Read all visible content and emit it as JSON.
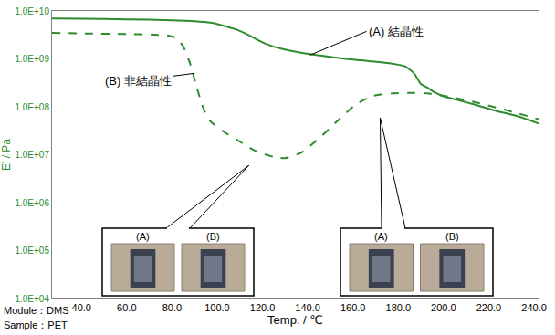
{
  "chart_data": {
    "type": "line",
    "xlabel": "Temp. / ℃",
    "ylabel": "E' / Pa",
    "xlim": [
      27,
      242
    ],
    "xticks": [
      {
        "value": 40,
        "label": "40.0"
      },
      {
        "value": 60,
        "label": "60.0"
      },
      {
        "value": 80,
        "label": "80.0"
      },
      {
        "value": 100,
        "label": "100.0"
      },
      {
        "value": 120,
        "label": "120.0"
      },
      {
        "value": 140,
        "label": "140.0"
      },
      {
        "value": 160,
        "label": "160.0"
      },
      {
        "value": 180,
        "label": "180.0"
      },
      {
        "value": 200,
        "label": "200.0"
      },
      {
        "value": 220,
        "label": "220.0"
      },
      {
        "value": 240,
        "label": "240.0"
      }
    ],
    "ylim": [
      10000,
      10000000000
    ],
    "yticks": [
      {
        "value": 10000,
        "label": "1.0E+04"
      },
      {
        "value": 100000,
        "label": "1.0E+05"
      },
      {
        "value": 1000000,
        "label": "1.0E+06"
      },
      {
        "value": 10000000,
        "label": "1.0E+07"
      },
      {
        "value": 100000000,
        "label": "1.0E+08"
      },
      {
        "value": 1000000000,
        "label": "1.0E+09"
      },
      {
        "value": 10000000000,
        "label": "1.0E+10"
      }
    ],
    "log": "y",
    "grid": false,
    "series": [
      {
        "name": "(A) 結晶性",
        "color": "#2e8b2e",
        "line_style": "solid",
        "x": [
          27,
          40,
          60,
          80,
          90,
          97,
          101,
          105,
          109,
          113,
          117,
          121,
          129,
          137,
          147,
          157,
          167,
          177,
          183,
          187,
          190,
          193,
          196,
          201,
          206,
          214,
          222,
          232,
          242
        ],
        "values": [
          7000000000,
          6900000000,
          6700000000,
          6400000000,
          6100000000,
          5700000000,
          5200000000,
          4600000000,
          4000000000,
          3300000000,
          2600000000,
          2100000000,
          1600000000,
          1350000000,
          1150000000,
          1000000000,
          900000000,
          800000000,
          700000000,
          500000000,
          300000000,
          250000000,
          200000000,
          160000000,
          140000000,
          110000000,
          85000000,
          65000000,
          45000000
        ]
      },
      {
        "name": "(B) 非結晶性",
        "color": "#2e8b2e",
        "line_style": "dashed",
        "x": [
          27,
          40,
          60,
          72,
          78,
          82,
          85,
          88,
          91,
          94,
          97,
          103,
          109,
          117,
          125,
          130,
          137,
          145,
          153,
          161,
          169,
          177,
          185,
          193,
          200,
          206,
          214,
          222,
          232,
          242
        ],
        "values": [
          3500000000,
          3400000000,
          3300000000,
          3200000000,
          3100000000,
          2700000000,
          1800000000,
          800000000,
          250000000,
          90000000,
          50000000,
          30000000,
          20000000,
          12000000,
          9000000,
          8500000,
          11000000,
          22000000,
          50000000,
          110000000,
          170000000,
          190000000,
          195000000,
          190000000,
          170000000,
          150000000,
          125000000,
          100000000,
          75000000,
          55000000
        ]
      }
    ],
    "annotations": [
      {
        "text": "(A) 結晶性",
        "x": 141,
        "y": 1200000000
      },
      {
        "text": "(B) 非結晶性",
        "x": 90,
        "y": 500000000
      }
    ],
    "notes": [
      "Module：DMS",
      "Sample：PET"
    ],
    "highlights": [
      {
        "x": [
          107,
          121
        ],
        "y": [
          6000000,
          10000000000
        ],
        "photos": [
          "(A)",
          "(B)"
        ]
      },
      {
        "x": [
          166,
          178
        ],
        "y": [
          59000000,
          2200000000
        ],
        "photos": [
          "(A)",
          "(B)"
        ]
      }
    ]
  }
}
